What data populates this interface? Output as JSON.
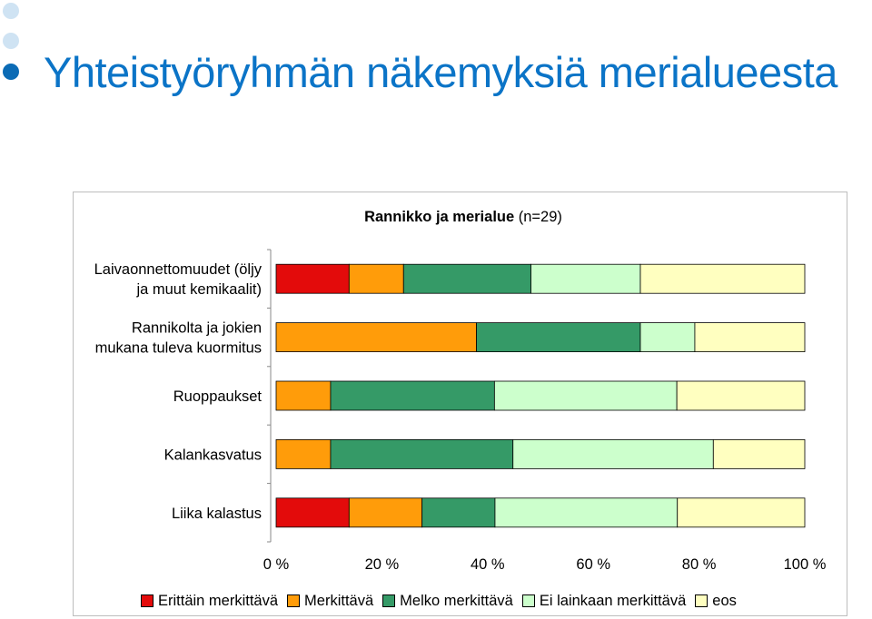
{
  "title": "Yhteistyöryhmän näkemyksiä merialueesta",
  "chart_data": {
    "type": "bar",
    "orientation": "horizontal",
    "stacked": "percent",
    "title_bold": "Rannikko ja merialue",
    "title_rest": "(n=29)",
    "categories": [
      [
        "Laivaonnettomuudet (öljy",
        "ja muut kemikaalit)"
      ],
      [
        "Rannikolta ja jokien",
        "mukana tuleva kuormitus"
      ],
      [
        "Ruoppaukset"
      ],
      [
        "Kalankasvatus"
      ],
      [
        "Liika kalastus"
      ]
    ],
    "series": [
      {
        "name": "Erittäin merkittävä",
        "color": "#e30b0b",
        "values": [
          13.8,
          0,
          0,
          0,
          13.8
        ]
      },
      {
        "name": "Merkittävä",
        "color": "#ff9c0a",
        "values": [
          10.3,
          37.9,
          10.3,
          10.3,
          13.8
        ]
      },
      {
        "name": "Melko merkittävä",
        "color": "#359a67",
        "values": [
          24.1,
          31.0,
          31.0,
          34.5,
          13.8
        ]
      },
      {
        "name": "Ei lainkaan merkittävä",
        "color": "#ccffcc",
        "values": [
          20.7,
          10.3,
          34.5,
          37.9,
          34.5
        ]
      },
      {
        "name": "eos",
        "color": "#ffffc0",
        "values": [
          31.1,
          20.8,
          24.2,
          17.3,
          24.1
        ]
      }
    ],
    "xlim": [
      0,
      100
    ],
    "xticks": [
      "0 %",
      "20 %",
      "40 %",
      "60 %",
      "80 %",
      "100 %"
    ],
    "grid": false,
    "legend_position": "bottom"
  }
}
